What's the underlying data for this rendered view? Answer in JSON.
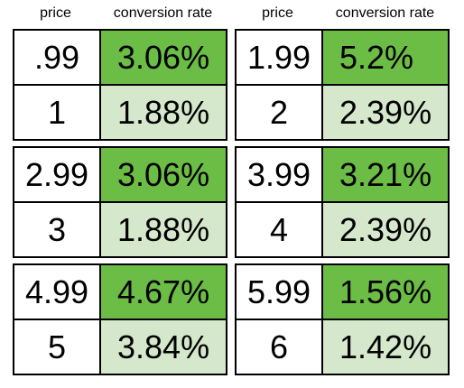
{
  "headers": [
    "price",
    "conversion rate",
    "price",
    "conversion rate"
  ],
  "blocks": [
    {
      "rows": [
        [
          ".99",
          "3.06%"
        ],
        [
          "1",
          "1.88%"
        ]
      ]
    },
    {
      "rows": [
        [
          "1.99",
          "5.2%"
        ],
        [
          "2",
          "2.39%"
        ]
      ]
    },
    {
      "rows": [
        [
          "2.99",
          "3.06%"
        ],
        [
          "3",
          "1.88%"
        ]
      ]
    },
    {
      "rows": [
        [
          "3.99",
          "3.21%"
        ],
        [
          "4",
          "2.39%"
        ]
      ]
    },
    {
      "rows": [
        [
          "4.99",
          "4.67%"
        ],
        [
          "5",
          "3.84%"
        ]
      ]
    },
    {
      "rows": [
        [
          "5.99",
          "1.56%"
        ],
        [
          "6",
          "1.42%"
        ]
      ]
    }
  ]
}
